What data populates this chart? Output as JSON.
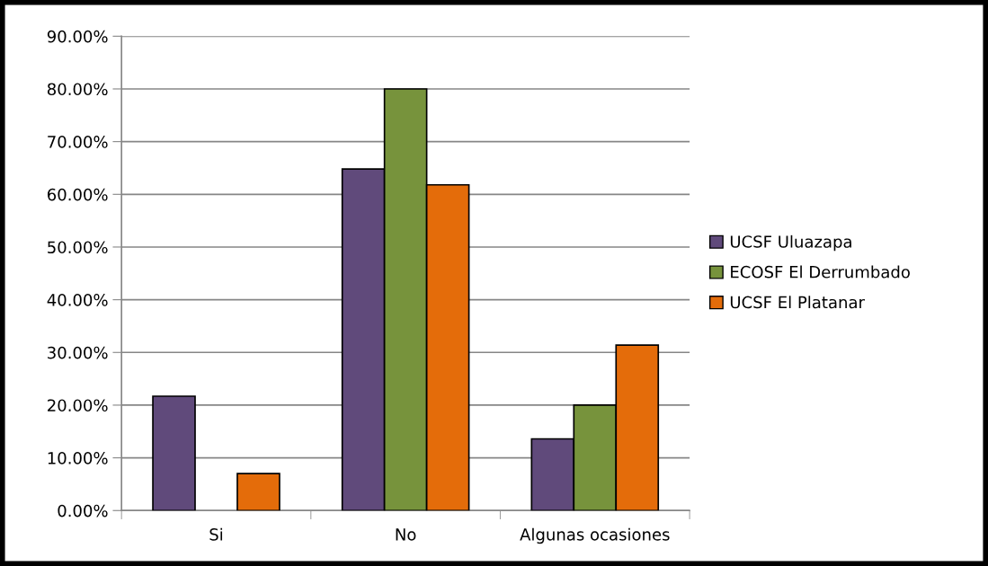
{
  "chart_data": {
    "type": "bar",
    "categories": [
      "Si",
      "No",
      "Algunas ocasiones"
    ],
    "series": [
      {
        "name": "UCSF Uluazapa",
        "color": "#604a7b",
        "values": [
          21.7,
          64.8,
          13.6
        ]
      },
      {
        "name": "ECOSF El Derrumbado",
        "color": "#77933c",
        "values": [
          null,
          80,
          20
        ]
      },
      {
        "name": "UCSF El Platanar",
        "color": "#e46c0a",
        "values": [
          7.0,
          61.8,
          31.4
        ]
      }
    ],
    "ylim": [
      0,
      90
    ],
    "yticks": [
      {
        "value": 0,
        "label": "0.00%"
      },
      {
        "value": 10,
        "label": "10.00%"
      },
      {
        "value": 20,
        "label": "20.00%"
      },
      {
        "value": 30,
        "label": "30.00%"
      },
      {
        "value": 40,
        "label": "40.00%"
      },
      {
        "value": 50,
        "label": "50.00%"
      },
      {
        "value": 60,
        "label": "60.00%"
      },
      {
        "value": 70,
        "label": "70.00%"
      },
      {
        "value": 80,
        "label": "80.00%"
      },
      {
        "value": 90,
        "label": "90.00%"
      }
    ],
    "grid": "y",
    "legend": "right"
  }
}
